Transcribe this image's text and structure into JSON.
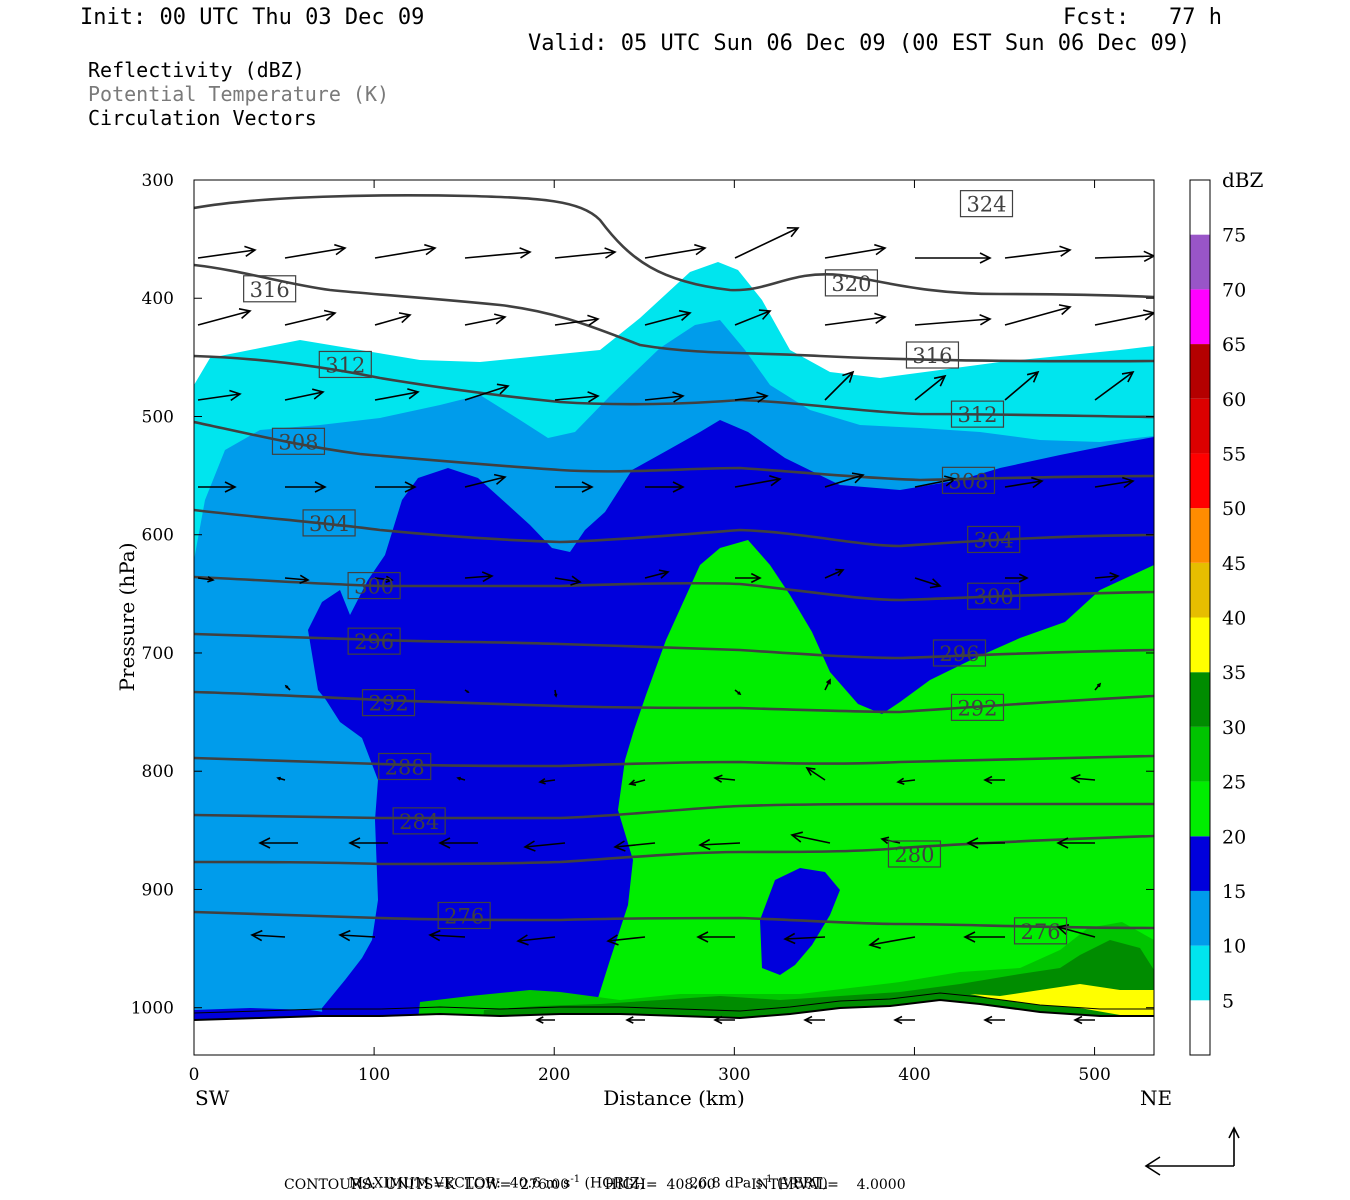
{
  "header": {
    "init": "Init: 00 UTC Thu 03 Dec 09",
    "fcst": "Fcst:   77 h",
    "valid": "Valid: 05 UTC Sun 06 Dec 09 (00 EST Sun 06 Dec 09)"
  },
  "fields": {
    "reflectivity": "Reflectivity (dBZ)",
    "theta": "Potential Temperature (K)",
    "vectors": "Circulation Vectors"
  },
  "footer": {
    "max_vector_prefix": "MAXIMUM VECTOR:  40.6 m s",
    "max_vector_mid": " (HORIZ)          26.8 dPa s",
    "max_vector_suffix": " (VERT)",
    "exp": "-1",
    "contours": "CONTOURS:  UNITS=K  LOW=  276.00        HIGH=  408.00        INTERVAL=    4.0000"
  },
  "chart_data": {
    "type": "cross-section",
    "xlabel": "Distance (km)",
    "ylabel": "Pressure (hPa)",
    "x_left_label": "SW",
    "x_right_label": "NE",
    "xlim": [
      0,
      533
    ],
    "ylim": [
      1040,
      300
    ],
    "x_ticks": [
      0,
      100,
      200,
      300,
      400,
      500
    ],
    "y_ticks": [
      300,
      400,
      500,
      600,
      700,
      800,
      900,
      1000
    ],
    "colorbar": {
      "title": "dBZ",
      "levels": [
        5,
        10,
        15,
        20,
        25,
        30,
        35,
        40,
        45,
        50,
        55,
        60,
        65,
        70,
        75
      ],
      "colors": [
        "#ffffff",
        "#00e5ee",
        "#009ceb",
        "#0000dc",
        "#00ee00",
        "#00c400",
        "#008c00",
        "#ffff00",
        "#e6be00",
        "#ff8c00",
        "#ff0000",
        "#dc0000",
        "#b40000",
        "#ff00ff",
        "#9955c8"
      ]
    },
    "theta_labels": [
      {
        "value": "324",
        "x": 440,
        "p": 320
      },
      {
        "value": "320",
        "x": 365,
        "p": 387
      },
      {
        "value": "316",
        "x": 42,
        "p": 392
      },
      {
        "value": "316",
        "x": 410,
        "p": 448
      },
      {
        "value": "312",
        "x": 84,
        "p": 456
      },
      {
        "value": "312",
        "x": 435,
        "p": 498
      },
      {
        "value": "308",
        "x": 58,
        "p": 521
      },
      {
        "value": "308",
        "x": 430,
        "p": 554
      },
      {
        "value": "304",
        "x": 75,
        "p": 590
      },
      {
        "value": "304",
        "x": 444,
        "p": 604
      },
      {
        "value": "300",
        "x": 100,
        "p": 643
      },
      {
        "value": "300",
        "x": 444,
        "p": 652
      },
      {
        "value": "296",
        "x": 100,
        "p": 690
      },
      {
        "value": "296",
        "x": 425,
        "p": 700
      },
      {
        "value": "292",
        "x": 108,
        "p": 742
      },
      {
        "value": "292",
        "x": 435,
        "p": 746
      },
      {
        "value": "288",
        "x": 117,
        "p": 796
      },
      {
        "value": "284",
        "x": 125,
        "p": 842
      },
      {
        "value": "280",
        "x": 400,
        "p": 870
      },
      {
        "value": "276",
        "x": 150,
        "p": 922
      },
      {
        "value": "276",
        "x": 470,
        "p": 935
      }
    ]
  }
}
